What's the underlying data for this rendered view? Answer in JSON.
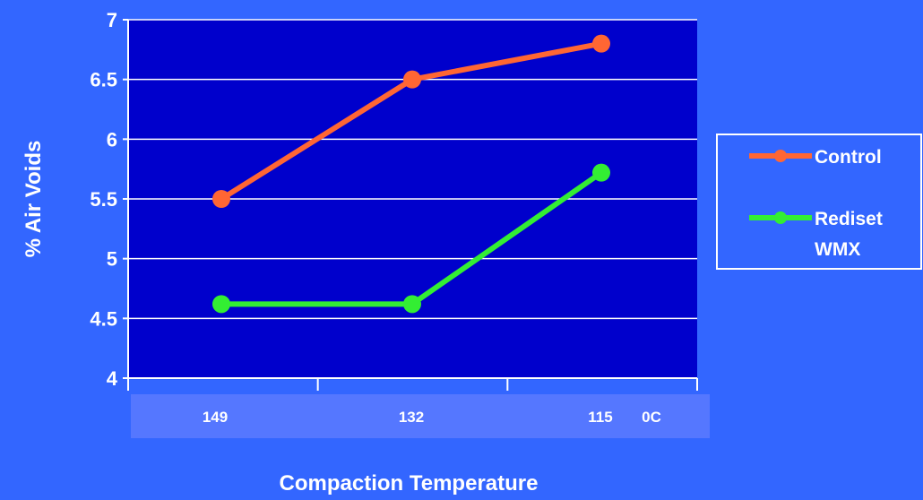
{
  "chart_data": {
    "type": "line",
    "categories": [
      "149",
      "132",
      "115"
    ],
    "x_unit_label": "0C",
    "xlabel": "Compaction Temperature",
    "ylabel": "% Air Voids",
    "ylim": [
      4,
      7
    ],
    "yticks": [
      "4",
      "4.5",
      "5",
      "5.5",
      "6",
      "6.5",
      "7"
    ],
    "grid": true,
    "legend_position": "right",
    "series": [
      {
        "name": "Control",
        "values": [
          5.5,
          6.5,
          6.8
        ],
        "color": "#ff6633"
      },
      {
        "name": "Rediset WMX",
        "legend_lines": [
          "Rediset",
          "WMX"
        ],
        "values": [
          4.62,
          4.62,
          5.72
        ],
        "color": "#33ee33"
      }
    ],
    "colors": {
      "background": "#3366ff",
      "plot_area": "#0000cc",
      "gridline": "#ffffff",
      "x_label_band": "#5577ff"
    }
  }
}
